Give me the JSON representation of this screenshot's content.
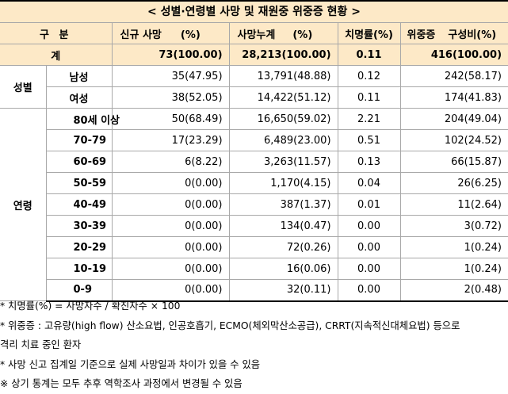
{
  "title": "< 성별·연령별 사망 및 재원중 위중증 현황 >",
  "header": {
    "gubun": "구 분",
    "new_deaths": "신규 사망",
    "new_pct": "(%)",
    "cum_deaths": "사망누계",
    "cum_pct": "(%)",
    "fatality": "치명률(%)",
    "severe": "위중증",
    "severe_ratio": "구성비(%)"
  },
  "total": {
    "label": "계",
    "new": "73(100.00)",
    "cum": "28,213(100.00)",
    "fatality": "0.11",
    "severe": "416(100.00)"
  },
  "sex_group_label": "성별",
  "sex_rows": [
    {
      "label": "남성",
      "new": "35(47.95)",
      "cum": "13,791(48.88)",
      "fatality": "0.12",
      "severe": "242(58.17)"
    },
    {
      "label": "여성",
      "new": "38(52.05)",
      "cum": "14,422(51.12)",
      "fatality": "0.11",
      "severe": "174(41.83)"
    }
  ],
  "age_group_label": "연령",
  "age_rows": [
    {
      "label": "80세 이상",
      "new": "50(68.49)",
      "cum": "16,650(59.02)",
      "fatality": "2.21",
      "severe": "204(49.04)"
    },
    {
      "label": "70-79",
      "new": "17(23.29)",
      "cum": "6,489(23.00)",
      "fatality": "0.51",
      "severe": "102(24.52)"
    },
    {
      "label": "60-69",
      "new": "6(8.22)",
      "cum": "3,263(11.57)",
      "fatality": "0.13",
      "severe": "66(15.87)"
    },
    {
      "label": "50-59",
      "new": "0(0.00)",
      "cum": "1,170(4.15)",
      "fatality": "0.04",
      "severe": "26(6.25)"
    },
    {
      "label": "40-49",
      "new": "0(0.00)",
      "cum": "387(1.37)",
      "fatality": "0.01",
      "severe": "11(2.64)"
    },
    {
      "label": "30-39",
      "new": "0(0.00)",
      "cum": "134(0.47)",
      "fatality": "0.00",
      "severe": "3(0.72)"
    },
    {
      "label": "20-29",
      "new": "0(0.00)",
      "cum": "72(0.26)",
      "fatality": "0.00",
      "severe": "1(0.24)"
    },
    {
      "label": "10-19",
      "new": "0(0.00)",
      "cum": "16(0.06)",
      "fatality": "0.00",
      "severe": "1(0.24)"
    },
    {
      "label": "0-9",
      "new": "0(0.00)",
      "cum": "32(0.11)",
      "fatality": "0.00",
      "severe": "2(0.48)"
    }
  ],
  "notes": [
    "* 치명률(%) = 사망자수 / 확진자수 × 100",
    "* 위중증 : 고유량(high flow) 산소요법, 인공호흡기, ECMO(체외막산소공급), CRRT(지속적신대체요법) 등으로",
    "격리 치료 중인 환자",
    "* 사망 신고 집계일 기준으로 실제 사망일과 차이가 있을 수 있음",
    "※ 상기 통계는 모두 추후 역학조사 과정에서 변경될 수 있음"
  ]
}
